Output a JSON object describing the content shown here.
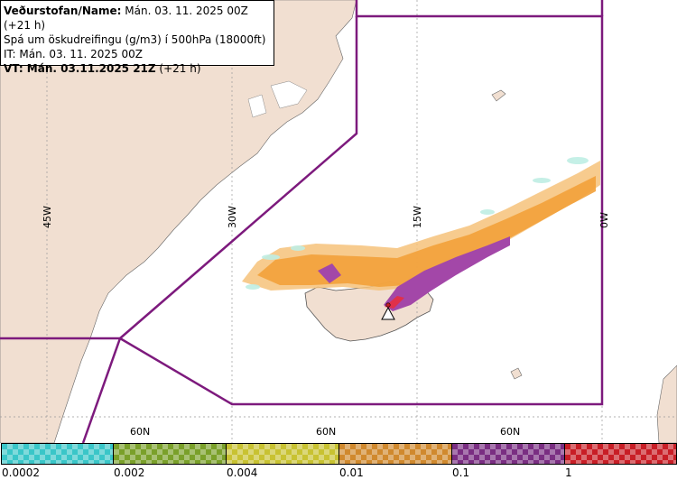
{
  "info": {
    "line1_label": "Veðurstofan/Name:",
    "line1_value": " Mán. 03. 11. 2025 00Z (+21 h)",
    "line2": "Spá um öskudreifingu (g/m3) í 500hPa (18000ft)",
    "line3": "IT: Mán. 03. 11. 2025 00Z",
    "line4_label": "VT: Mán. 03.11.2025 21Z",
    "line4_value": " (+21 h)"
  },
  "grid_labels": {
    "lon": [
      "45W",
      "30W",
      "15W",
      "0W"
    ],
    "lat": [
      "60N",
      "60N",
      "60N"
    ]
  },
  "legend": {
    "ticks": [
      "0.0002",
      "0.002",
      "0.004",
      "0.01",
      "0.1",
      "1"
    ],
    "colors": [
      "#3ac6c8",
      "#7aa02a",
      "#c8c232",
      "#d0892e",
      "#7a2e82",
      "#c81e26"
    ]
  },
  "colors": {
    "land": "#f1dfd1",
    "sea": "#ffffff",
    "fir_boundary": "#7d1a7d",
    "ash_low": "#f6c27a",
    "ash_mid": "#f2a13a",
    "ash_high": "#a347a8",
    "ash_top": "#e0304a"
  }
}
